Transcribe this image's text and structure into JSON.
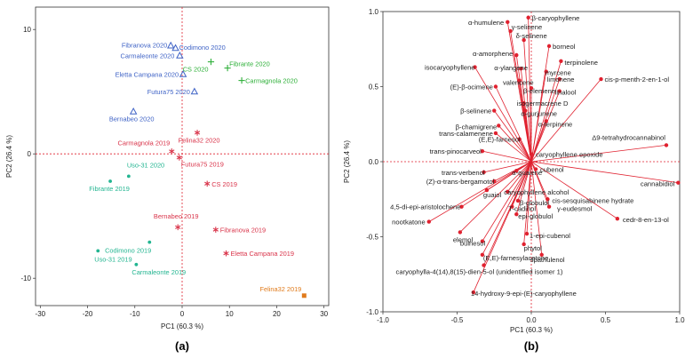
{
  "panel_labels": [
    "(a)",
    "(b)"
  ],
  "colors": {
    "year2020_blue": "#3f63c6",
    "year2020_green": "#2fb03a",
    "year2019_red": "#d9344a",
    "year2019_teal": "#23b591",
    "felina_orange": "#e07b1c",
    "loading_red": "#e0212f",
    "zero_line": "#e0212f",
    "axis": "#333333"
  },
  "chart_data": [
    {
      "type": "scatter",
      "title": "",
      "xlabel": "PC1 (60.3 %)",
      "ylabel": "PC2 (26.4 %)",
      "xlim": [
        -31,
        31
      ],
      "ylim": [
        -12.2,
        11.8
      ],
      "xticks": [
        -30,
        -20,
        -10,
        0,
        10,
        20,
        30
      ],
      "yticks": [
        -10,
        0,
        10
      ],
      "grid": false,
      "series": [
        {
          "name": "group-blue-2020",
          "marker": "triangle",
          "color": "#3f63c6",
          "points": [
            {
              "label": "Fibranova 2020",
              "x": -2.4,
              "y": 8.7,
              "anchor": "end",
              "dx": -4,
              "dy": 2
            },
            {
              "label": "Codimono 2020",
              "x": -1.4,
              "y": 8.5,
              "anchor": "start",
              "dx": 4,
              "dy": 2
            },
            {
              "label": "Carmaleonte 2020",
              "x": -0.5,
              "y": 7.9,
              "anchor": "end",
              "dx": -6,
              "dy": 3
            },
            {
              "label": "Eletta Campana 2020",
              "x": 0.2,
              "y": 6.4,
              "anchor": "end",
              "dx": -5,
              "dy": 3
            },
            {
              "label": "Futura75 2020",
              "x": 2.6,
              "y": 5.0,
              "anchor": "end",
              "dx": -5,
              "dy": 3
            },
            {
              "label": "Bernabeo 2020",
              "x": -10.3,
              "y": 3.4,
              "anchor": "middle",
              "dx": -2,
              "dy": 11
            }
          ]
        },
        {
          "name": "group-green-2020",
          "marker": "plus",
          "color": "#2fb03a",
          "points": [
            {
              "label": "CS 2020",
              "x": 6.1,
              "y": 7.4,
              "anchor": "end",
              "dx": -3,
              "dy": 11
            },
            {
              "label": "Fibrante 2020",
              "x": 9.6,
              "y": 6.9,
              "anchor": "start",
              "dx": 2,
              "dy": -2
            },
            {
              "label": "Carmagnola 2020",
              "x": 12.6,
              "y": 5.9,
              "anchor": "start",
              "dx": 4,
              "dy": 3
            }
          ]
        },
        {
          "name": "group-red-2019",
          "marker": "asterisk",
          "color": "#d9344a",
          "points": [
            {
              "label": "Felina32 2020",
              "x": 3.2,
              "y": 1.7,
              "anchor": "middle",
              "dx": 2,
              "dy": 11
            },
            {
              "label": "Carmagnola 2019",
              "x": -2.2,
              "y": 0.2,
              "anchor": "end",
              "dx": -2,
              "dy": -7
            },
            {
              "label": "Futura75 2019",
              "x": -0.6,
              "y": -0.3,
              "anchor": "start",
              "dx": 2,
              "dy": 10
            },
            {
              "label": "CS 2019",
              "x": 5.3,
              "y": -2.4,
              "anchor": "start",
              "dx": 5,
              "dy": 3
            },
            {
              "label": "Bernabeo 2019",
              "x": -0.9,
              "y": -5.9,
              "anchor": "middle",
              "dx": -2,
              "dy": -10
            },
            {
              "label": "Fibranova 2019",
              "x": 7.1,
              "y": -6.1,
              "anchor": "start",
              "dx": 5,
              "dy": 3
            },
            {
              "label": "Eletta Campana 2019",
              "x": 9.3,
              "y": -8.0,
              "anchor": "start",
              "dx": 5,
              "dy": 3
            }
          ]
        },
        {
          "name": "group-teal-2019",
          "marker": "dot",
          "color": "#23b591",
          "points": [
            {
              "label": "Uso-31 2020",
              "x": -11.3,
              "y": -1.8,
              "anchor": "start",
              "dx": -2,
              "dy": -10
            },
            {
              "label": "Fibrante 2019",
              "x": -15.2,
              "y": -2.2,
              "anchor": "middle",
              "dx": -1,
              "dy": 11
            },
            {
              "label": "Codimono 2019",
              "x": -6.9,
              "y": -7.1,
              "anchor": "end",
              "dx": 2,
              "dy": 12
            },
            {
              "label": "Uso-31 2019",
              "x": -17.8,
              "y": -7.8,
              "anchor": "start",
              "dx": -4,
              "dy": 12
            },
            {
              "label": "Carmaleonte 2019",
              "x": -9.7,
              "y": -8.9,
              "anchor": "start",
              "dx": -5,
              "dy": 11
            }
          ]
        },
        {
          "name": "group-felina-2019",
          "marker": "square",
          "color": "#e07b1c",
          "points": [
            {
              "label": "Felina32 2019",
              "x": 25.8,
              "y": -11.4,
              "anchor": "end",
              "dx": -3,
              "dy": -5
            }
          ]
        }
      ]
    },
    {
      "type": "scatter",
      "subtype": "loading-plot",
      "title": "",
      "xlabel": "PC1 (60.3 %)",
      "ylabel": "PC2 (26.4 %)",
      "xlim": [
        -1.0,
        1.0
      ],
      "ylim": [
        -1.0,
        1.0
      ],
      "xticks": [
        -1.0,
        -0.5,
        0.0,
        0.5,
        1.0
      ],
      "yticks": [
        -1.0,
        -0.5,
        0.0,
        0.5,
        1.0
      ],
      "grid": false,
      "loadings": [
        {
          "label": "β-caryophyllene",
          "x": -0.02,
          "y": 0.96,
          "anchor": "start",
          "dx": 4,
          "dy": 3
        },
        {
          "label": "α-humulene",
          "x": -0.16,
          "y": 0.93,
          "anchor": "end",
          "dx": -4,
          "dy": 3
        },
        {
          "label": "γ-selinene",
          "x": -0.14,
          "y": 0.87,
          "anchor": "start",
          "dx": 1,
          "dy": -2
        },
        {
          "label": "δ-selinene",
          "x": -0.05,
          "y": 0.81,
          "anchor": "start",
          "dx": -9,
          "dy": -2
        },
        {
          "label": "borneol",
          "x": 0.12,
          "y": 0.77,
          "anchor": "start",
          "dx": 4,
          "dy": 3
        },
        {
          "label": "α-amorphene",
          "x": -0.1,
          "y": 0.71,
          "anchor": "end",
          "dx": -4,
          "dy": 1
        },
        {
          "label": "terpinolene",
          "x": 0.2,
          "y": 0.67,
          "anchor": "start",
          "dx": 4,
          "dy": 4
        },
        {
          "label": "isocaryophyllene",
          "x": -0.38,
          "y": 0.63,
          "anchor": "end",
          "dx": 0,
          "dy": 3
        },
        {
          "label": "α-ylangene",
          "x": -0.07,
          "y": 0.62,
          "anchor": "start",
          "dx": -30,
          "dy": 2
        },
        {
          "label": "myrcene",
          "x": 0.1,
          "y": 0.6,
          "anchor": "start",
          "dx": -1,
          "dy": 4
        },
        {
          "label": "limonene",
          "x": 0.19,
          "y": 0.55,
          "anchor": "start",
          "dx": -14,
          "dy": 3
        },
        {
          "label": "cis-p-menth-2-en-1-ol",
          "x": 0.47,
          "y": 0.55,
          "anchor": "start",
          "dx": 4,
          "dy": 3
        },
        {
          "label": "valencene",
          "x": -0.08,
          "y": 0.54,
          "anchor": "end",
          "dx": 16,
          "dy": 5
        },
        {
          "label": "(E)-β-ocimene",
          "x": -0.24,
          "y": 0.5,
          "anchor": "end",
          "dx": -3,
          "dy": 3
        },
        {
          "label": "β-elemene",
          "x": 0.0,
          "y": 0.49,
          "anchor": "start",
          "dx": -9,
          "dy": 6
        },
        {
          "label": "linalool",
          "x": 0.19,
          "y": 0.47,
          "anchor": "start",
          "dx": -5,
          "dy": 4
        },
        {
          "label": "isogermacrene D",
          "x": -0.05,
          "y": 0.39,
          "anchor": "start",
          "dx": -8,
          "dy": 3
        },
        {
          "label": "β-selinene",
          "x": -0.25,
          "y": 0.34,
          "anchor": "end",
          "dx": -3,
          "dy": 3
        },
        {
          "label": "α-gurjunene",
          "x": -0.04,
          "y": 0.34,
          "anchor": "start",
          "dx": -5,
          "dy": 6
        },
        {
          "label": "α-terpinene",
          "x": 0.1,
          "y": 0.27,
          "anchor": "start",
          "dx": -9,
          "dy": 6
        },
        {
          "label": "β-chamigrene",
          "x": -0.22,
          "y": 0.24,
          "anchor": "end",
          "dx": -2,
          "dy": 4
        },
        {
          "label": "trans-calamenene",
          "x": -0.24,
          "y": 0.19,
          "anchor": "end",
          "dx": -3,
          "dy": 3
        },
        {
          "label": "(E,E)-farnesol",
          "x": -0.08,
          "y": 0.15,
          "anchor": "end",
          "dx": 1,
          "dy": 3
        },
        {
          "label": "Δ9-tetrahydrocannabinol",
          "x": 0.91,
          "y": 0.11,
          "anchor": "end",
          "dx": -1,
          "dy": -6
        },
        {
          "label": "trans-pinocarveol",
          "x": -0.33,
          "y": 0.07,
          "anchor": "end",
          "dx": -1,
          "dy": 3
        },
        {
          "label": "caryophyllene epoxide",
          "x": 0.0,
          "y": 0.05,
          "anchor": "start",
          "dx": 5,
          "dy": 3
        },
        {
          "label": "trans-verbenol",
          "x": -0.32,
          "y": -0.07,
          "anchor": "end",
          "dx": 1,
          "dy": 3
        },
        {
          "label": "α-guaiene",
          "x": -0.1,
          "y": -0.06,
          "anchor": "start",
          "dx": -5,
          "dy": 5
        },
        {
          "label": "cubenol",
          "x": 0.03,
          "y": -0.05,
          "anchor": "start",
          "dx": 5,
          "dy": 3
        },
        {
          "label": "cannabidiol",
          "x": 0.99,
          "y": -0.14,
          "anchor": "end",
          "dx": -4,
          "dy": 4
        },
        {
          "label": "(Z)-α-trans-bergamotol",
          "x": -0.25,
          "y": -0.13,
          "anchor": "end",
          "dx": 0,
          "dy": 3
        },
        {
          "label": "guaiol",
          "x": -0.3,
          "y": -0.19,
          "anchor": "start",
          "dx": -4,
          "dy": 8
        },
        {
          "label": "caryophyllene alcohol",
          "x": -0.16,
          "y": -0.2,
          "anchor": "start",
          "dx": -4,
          "dy": 3
        },
        {
          "label": "cis-sesquisabinene hydrate",
          "x": 0.11,
          "y": -0.25,
          "anchor": "start",
          "dx": 5,
          "dy": 4
        },
        {
          "label": "β-globulol",
          "x": -0.09,
          "y": -0.26,
          "anchor": "start",
          "dx": 2,
          "dy": 5
        },
        {
          "label": "4,5-di-epi-aristolochene",
          "x": -0.47,
          "y": -0.3,
          "anchor": "end",
          "dx": -1,
          "dy": 3
        },
        {
          "label": "T-cadinol",
          "x": -0.13,
          "y": -0.3,
          "anchor": "start",
          "dx": -4,
          "dy": 5
        },
        {
          "label": "γ-eudesmol",
          "x": 0.12,
          "y": -0.3,
          "anchor": "start",
          "dx": 9,
          "dy": 5
        },
        {
          "label": "epi-globulol",
          "x": -0.1,
          "y": -0.35,
          "anchor": "start",
          "dx": 2,
          "dy": 5
        },
        {
          "label": "cedr-8-en-13-ol",
          "x": 0.58,
          "y": -0.38,
          "anchor": "start",
          "dx": 6,
          "dy": 4
        },
        {
          "label": "nootkatone",
          "x": -0.69,
          "y": -0.4,
          "anchor": "end",
          "dx": -4,
          "dy": 3
        },
        {
          "label": "1-epi-cubenol",
          "x": -0.03,
          "y": -0.48,
          "anchor": "start",
          "dx": 3,
          "dy": 5
        },
        {
          "label": "elemol",
          "x": -0.48,
          "y": -0.47,
          "anchor": "start",
          "dx": -8,
          "dy": 11
        },
        {
          "label": "bulnesol",
          "x": -0.33,
          "y": -0.53,
          "anchor": "start",
          "dx": -25,
          "dy": 5
        },
        {
          "label": "phytol",
          "x": -0.05,
          "y": -0.55,
          "anchor": "start",
          "dx": 0,
          "dy": 7
        },
        {
          "label": "(E,E)-farnesylacetone",
          "x": -0.33,
          "y": -0.62,
          "anchor": "start",
          "dx": 1,
          "dy": 6
        },
        {
          "label": "spathulenol",
          "x": 0.07,
          "y": -0.62,
          "anchor": "start",
          "dx": -13,
          "dy": 8
        },
        {
          "label": "caryophylla-4(14),8(15)-dien-5-ol (unidentified isomer 1)",
          "x": -0.32,
          "y": -0.69,
          "anchor": "start",
          "dx": -99,
          "dy": 10
        },
        {
          "label": "14-hydroxy-9-epi-(E)-caryophyllene",
          "x": -0.39,
          "y": -0.87,
          "anchor": "start",
          "dx": -3,
          "dy": 4
        }
      ]
    }
  ]
}
